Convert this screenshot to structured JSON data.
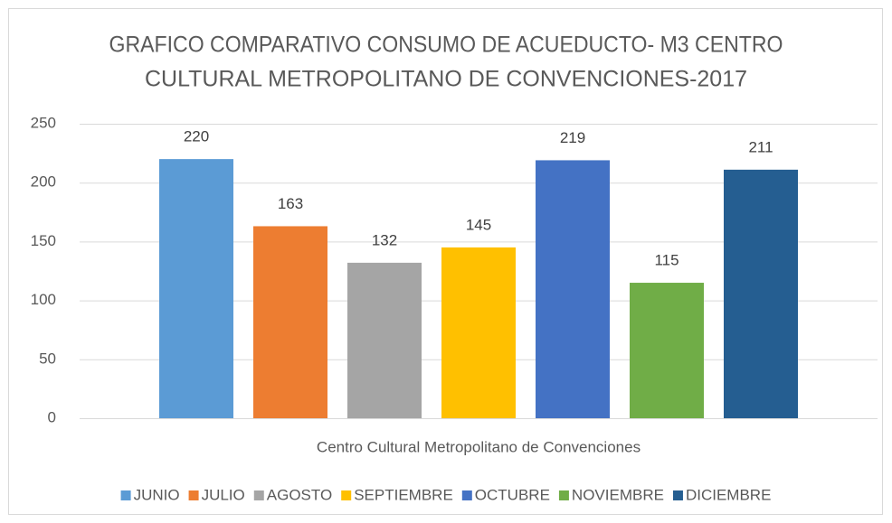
{
  "chart_data": {
    "type": "bar",
    "title": [
      "GRAFICO COMPARATIVO CONSUMO DE ACUEDUCTO- M3 CENTRO",
      "CULTURAL METROPOLITANO DE CONVENCIONES-2017"
    ],
    "categories": [
      "Centro Cultural Metropolitano de Convenciones"
    ],
    "series": [
      {
        "name": "JUNIO",
        "color": "#5b9bd5",
        "values": [
          220
        ]
      },
      {
        "name": "JULIO",
        "color": "#ed7d31",
        "values": [
          163
        ]
      },
      {
        "name": "AGOSTO",
        "color": "#a5a5a5",
        "values": [
          132
        ]
      },
      {
        "name": "SEPTIEMBRE",
        "color": "#ffc000",
        "values": [
          145
        ]
      },
      {
        "name": "OCTUBRE",
        "color": "#4472c4",
        "values": [
          219
        ]
      },
      {
        "name": "NOVIEMBRE",
        "color": "#70ad47",
        "values": [
          115
        ]
      },
      {
        "name": "DICIEMBRE",
        "color": "#255e91",
        "values": [
          211
        ]
      }
    ],
    "ylim": [
      0,
      250
    ],
    "yticks": [
      0,
      50,
      100,
      150,
      200,
      250
    ],
    "grid": true,
    "legend": "bottom"
  }
}
